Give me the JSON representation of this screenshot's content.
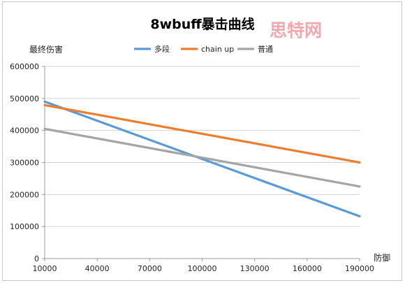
{
  "chart_data": {
    "type": "line",
    "title": "8wbuff暴击曲线",
    "ylabel": "最终伤害",
    "xlabel": "防御",
    "x": [
      10000,
      190000
    ],
    "x_ticks": [
      10000,
      40000,
      70000,
      100000,
      130000,
      160000,
      190000
    ],
    "xlim": [
      10000,
      190000
    ],
    "y_ticks": [
      0,
      100000,
      200000,
      300000,
      400000,
      500000,
      600000
    ],
    "ylim": [
      0,
      600000
    ],
    "grid": "horizontal",
    "legend_position": "top",
    "series": [
      {
        "name": "多段",
        "color": "#5b9bd5",
        "values": [
          490000,
          132000
        ]
      },
      {
        "name": "chain up",
        "color": "#ed7d31",
        "values": [
          479000,
          300000
        ]
      },
      {
        "name": "普通",
        "color": "#a5a5a5",
        "values": [
          405000,
          225000
        ]
      }
    ]
  },
  "watermark": "思特网"
}
